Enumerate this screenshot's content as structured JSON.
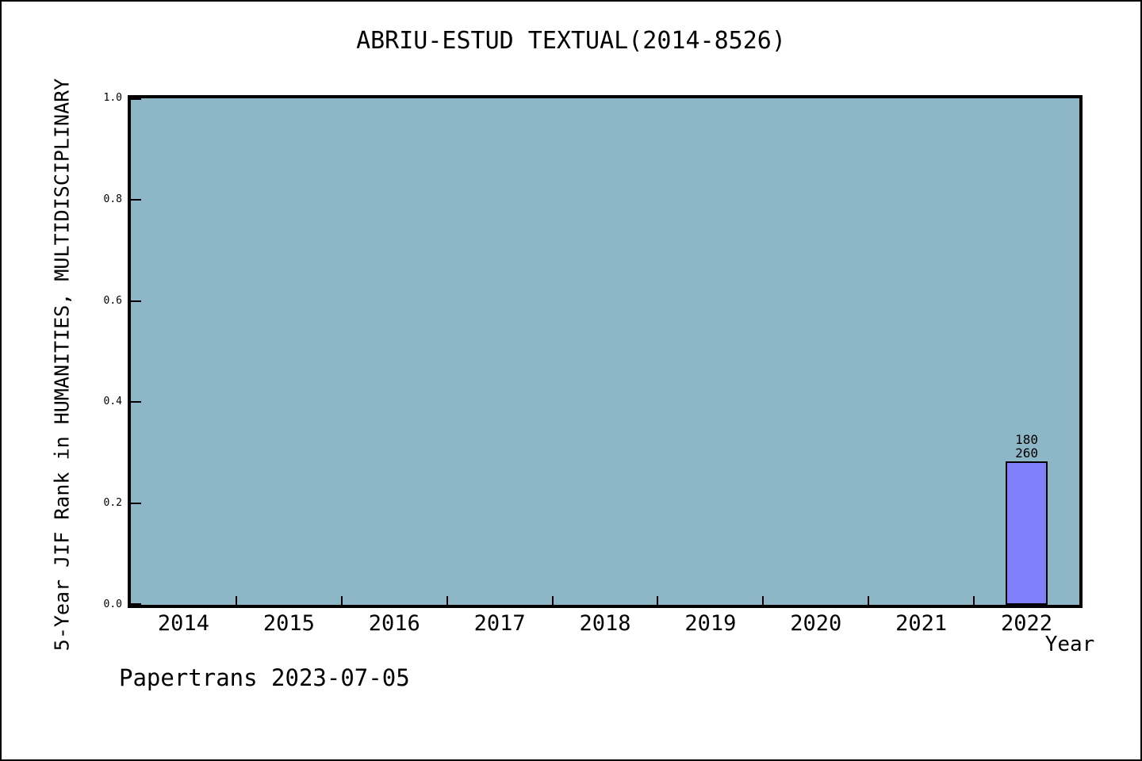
{
  "header": {
    "title": "ABRIU-ESTUD TEXTUAL(2014-8526)"
  },
  "footer": {
    "credit": "Papertrans 2023-07-05"
  },
  "chart_data": {
    "type": "bar",
    "title": "ABRIU-ESTUD TEXTUAL(2014-8526)",
    "xlabel": "Year",
    "ylabel": "5-Year JIF Rank in HUMANITIES, MULTIDISCIPLINARY",
    "categories": [
      "2014",
      "2015",
      "2016",
      "2017",
      "2018",
      "2019",
      "2020",
      "2021",
      "2022"
    ],
    "values": [
      null,
      null,
      null,
      null,
      null,
      null,
      null,
      null,
      0.283
    ],
    "annotations": [
      {
        "category": "2022",
        "lines": [
          "180",
          "260"
        ],
        "meaning": "rank 180 of 260"
      }
    ],
    "y_ticks": [
      "0.0",
      "0.2",
      "0.4",
      "0.6",
      "0.8",
      "1.0"
    ],
    "ylim": [
      0.0,
      1.0
    ],
    "grid": false,
    "legend": null,
    "colors": {
      "plot_bg": "#8db6c7",
      "bar_fill": "#8080fa",
      "bar_border": "#000000",
      "text": "#000000",
      "page_bg": "#ffffff"
    }
  }
}
